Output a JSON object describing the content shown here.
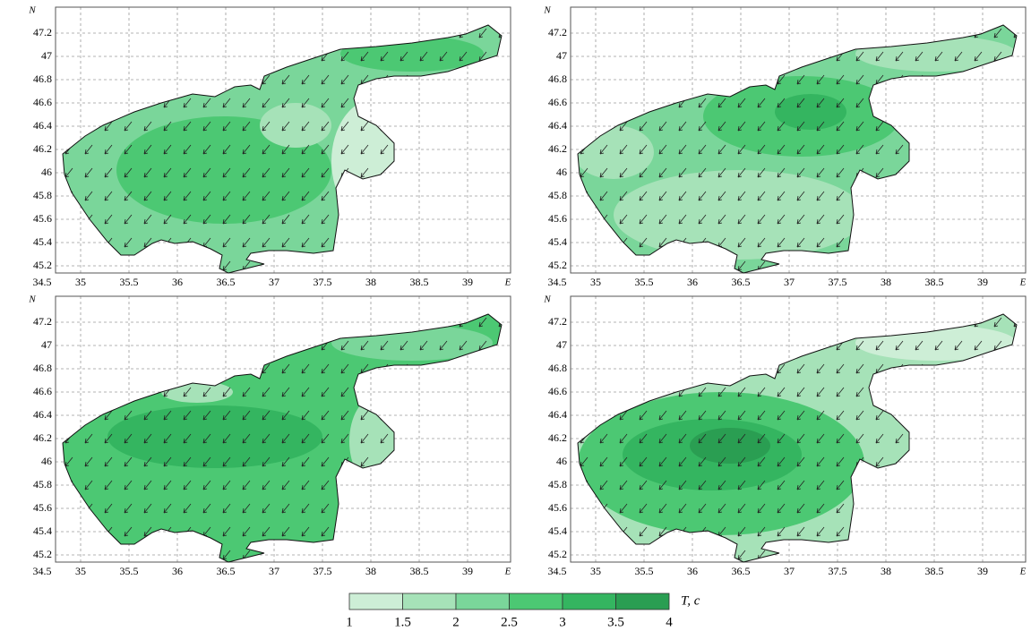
{
  "axes": {
    "x_label": "E",
    "y_label": "N",
    "xticks": [
      34.5,
      35,
      35.5,
      36,
      36.5,
      37,
      37.5,
      38,
      38.5,
      39
    ],
    "yticks": [
      45.2,
      45.4,
      45.6,
      45.8,
      46,
      46.2,
      46.4,
      46.6,
      46.8,
      47,
      47.2
    ]
  },
  "colorbar": {
    "label": "T, c",
    "ticks": [
      1,
      1.5,
      2,
      2.5,
      3,
      3.5,
      4
    ],
    "colors": [
      "#cdeed6",
      "#a6e2b8",
      "#7ad69a",
      "#4cc873",
      "#34b560",
      "#2a9e52"
    ]
  }
}
